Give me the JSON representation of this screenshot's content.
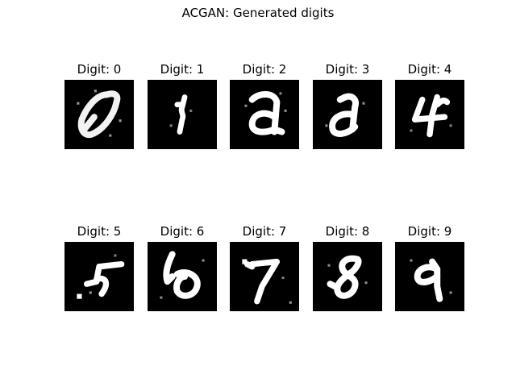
{
  "figure": {
    "title": "ACGAN: Generated digits"
  },
  "panels": [
    {
      "label": "Digit: 0",
      "digit": "0"
    },
    {
      "label": "Digit: 1",
      "digit": "1"
    },
    {
      "label": "Digit: 2",
      "digit": "2"
    },
    {
      "label": "Digit: 3",
      "digit": "3"
    },
    {
      "label": "Digit: 4",
      "digit": "4"
    },
    {
      "label": "Digit: 5",
      "digit": "5"
    },
    {
      "label": "Digit: 6",
      "digit": "6"
    },
    {
      "label": "Digit: 7",
      "digit": "7"
    },
    {
      "label": "Digit: 8",
      "digit": "8"
    },
    {
      "label": "Digit: 9",
      "digit": "9"
    }
  ],
  "colors": {
    "image_background": "#000000",
    "stroke": "#ffffff"
  }
}
